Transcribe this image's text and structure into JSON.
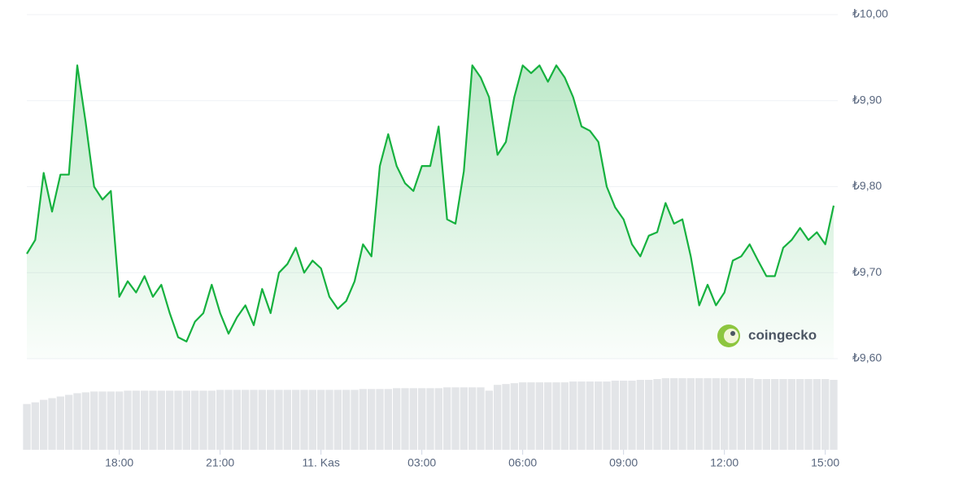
{
  "chart_data": {
    "type": "line",
    "categories": [
      null,
      null,
      null,
      null,
      null,
      null,
      null,
      null,
      null,
      null,
      null,
      "18:00",
      null,
      null,
      null,
      null,
      null,
      null,
      null,
      null,
      null,
      null,
      null,
      "21:00",
      null,
      null,
      null,
      null,
      null,
      null,
      null,
      null,
      null,
      null,
      null,
      "11. Kas",
      null,
      null,
      null,
      null,
      null,
      null,
      null,
      null,
      null,
      null,
      null,
      "03:00",
      null,
      null,
      null,
      null,
      null,
      null,
      null,
      null,
      null,
      null,
      null,
      "06:00",
      null,
      null,
      null,
      null,
      null,
      null,
      null,
      null,
      null,
      null,
      null,
      "09:00",
      null,
      null,
      null,
      null,
      null,
      null,
      null,
      null,
      null,
      null,
      null,
      "12:00",
      null,
      null,
      null,
      null,
      null,
      null,
      null,
      null,
      null,
      null,
      null,
      "15:00",
      null
    ],
    "values": [
      9.722,
      9.738,
      9.816,
      9.771,
      9.814,
      9.814,
      9.941,
      9.875,
      9.8,
      9.785,
      9.795,
      9.672,
      9.69,
      9.677,
      9.696,
      9.672,
      9.686,
      9.653,
      9.625,
      9.62,
      9.643,
      9.653,
      9.686,
      9.653,
      9.629,
      9.648,
      9.662,
      9.639,
      9.681,
      9.653,
      9.7,
      9.71,
      9.729,
      9.7,
      9.714,
      9.705,
      9.672,
      9.658,
      9.667,
      9.69,
      9.733,
      9.719,
      9.824,
      9.861,
      9.824,
      9.804,
      9.795,
      9.824,
      9.824,
      9.87,
      9.762,
      9.757,
      9.818,
      9.941,
      9.927,
      9.904,
      9.837,
      9.852,
      9.904,
      9.941,
      9.932,
      9.941,
      9.922,
      9.941,
      9.927,
      9.904,
      9.87,
      9.865,
      9.852,
      9.8,
      9.776,
      9.762,
      9.733,
      9.719,
      9.743,
      9.747,
      9.781,
      9.757,
      9.762,
      9.719,
      9.662,
      9.686,
      9.662,
      9.677,
      9.714,
      9.719,
      9.733,
      9.714,
      9.696,
      9.696,
      9.729,
      9.738,
      9.752,
      9.738,
      9.747,
      9.733,
      9.778
    ],
    "volume": [
      55,
      57,
      60,
      62,
      64,
      66,
      68,
      69,
      70,
      70,
      70,
      70,
      71,
      71,
      71,
      71,
      71,
      71,
      71,
      71,
      71,
      71,
      71,
      72,
      72,
      72,
      72,
      72,
      72,
      72,
      72,
      72,
      72,
      72,
      72,
      72,
      72,
      72,
      72,
      72,
      73,
      73,
      73,
      73,
      74,
      74,
      74,
      74,
      74,
      74,
      75,
      75,
      75,
      75,
      75,
      71,
      78,
      79,
      80,
      81,
      81,
      81,
      81,
      81,
      81,
      82,
      82,
      82,
      82,
      82,
      83,
      83,
      83,
      84,
      84,
      85,
      86,
      86,
      86,
      86,
      86,
      86,
      86,
      86,
      86,
      86,
      86,
      85,
      85,
      85,
      85,
      85,
      85,
      85,
      85,
      85,
      84
    ],
    "color": "#16b13f",
    "volume_color": "#e3e5e8",
    "ylim": [
      9.6,
      10.0
    ],
    "yticks": [
      {
        "value": 9.6,
        "label": "₺9,60"
      },
      {
        "value": 9.7,
        "label": "₺9,70"
      },
      {
        "value": 9.8,
        "label": "₺9,80"
      },
      {
        "value": 9.9,
        "label": "₺9,90"
      },
      {
        "value": 10.0,
        "label": "₺10,00"
      }
    ],
    "grid": true,
    "watermark": "coingecko"
  }
}
